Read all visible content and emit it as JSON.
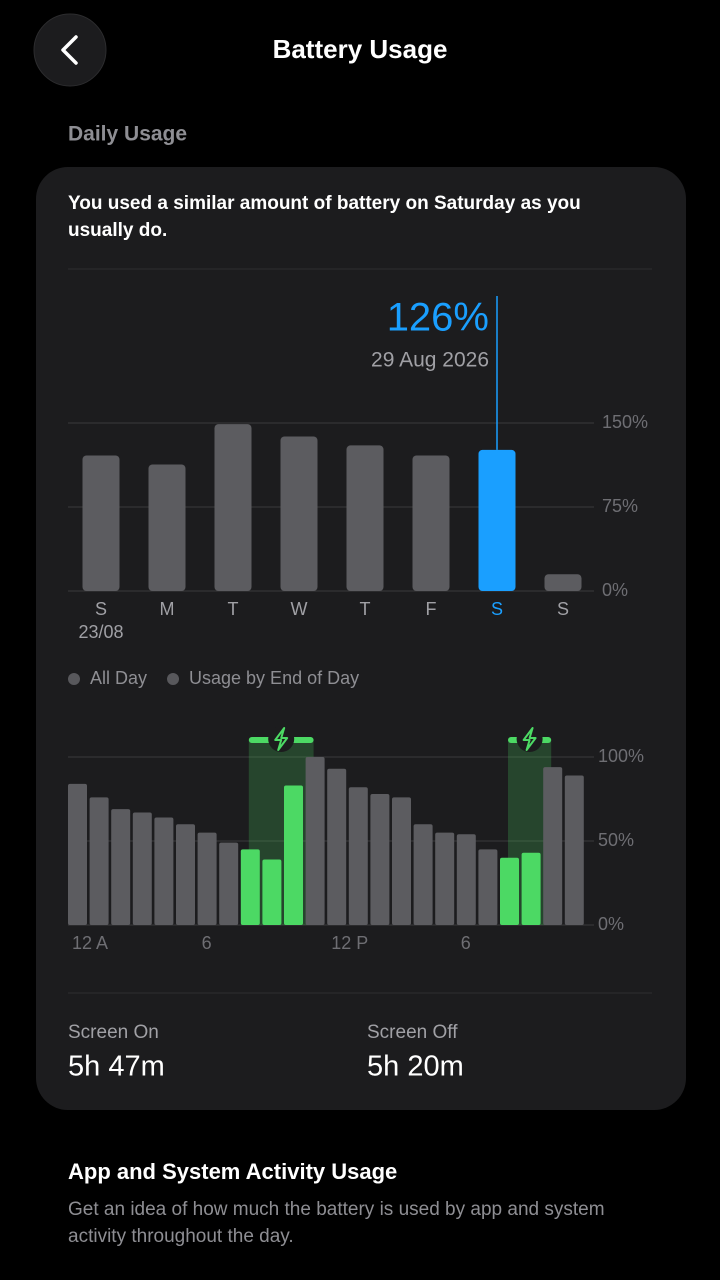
{
  "header": {
    "title": "Battery Usage"
  },
  "section_title": "Daily Usage",
  "summary": "You used a similar amount of battery on Saturday as you usually do.",
  "chart_data": [
    {
      "type": "bar",
      "categories": [
        "S",
        "M",
        "T",
        "W",
        "T",
        "F",
        "S",
        "S"
      ],
      "category_sublabels": [
        "23/08",
        null,
        null,
        null,
        null,
        null,
        null,
        null
      ],
      "values": [
        121,
        113,
        149,
        138,
        130,
        121,
        126,
        15
      ],
      "value_labels": [
        null,
        null,
        null,
        null,
        null,
        null,
        "126%",
        null
      ],
      "annotation": "29 Aug 2026",
      "colors": [
        "#5c5c60",
        "#5c5c60",
        "#5c5c60",
        "#5c5c60",
        "#5c5c60",
        "#5c5c60",
        "#1a9fff",
        "#5c5c60"
      ],
      "ylim": [
        0,
        150
      ],
      "yticks": [
        {
          "value": 0,
          "label": "0%"
        },
        {
          "value": 75,
          "label": "75%"
        },
        {
          "value": 150,
          "label": "150%"
        }
      ],
      "grid": true
    },
    {
      "type": "bar",
      "legend": [
        {
          "name": "All Day",
          "color": "#58585c"
        },
        {
          "name": "Usage by End of Day",
          "color": "#58585c"
        }
      ],
      "categories": [
        "12 A",
        null,
        null,
        null,
        null,
        null,
        "6",
        null,
        null,
        null,
        null,
        null,
        "12 P",
        null,
        null,
        null,
        null,
        null,
        "6",
        null,
        null,
        null,
        null,
        null
      ],
      "values": [
        84,
        76,
        69,
        67,
        64,
        60,
        55,
        49,
        45,
        39,
        83,
        100,
        93,
        82,
        78,
        76,
        60,
        55,
        54,
        45,
        40,
        43,
        94,
        89
      ],
      "colors": [
        "#5c5c60",
        "#5c5c60",
        "#5c5c60",
        "#5c5c60",
        "#5c5c60",
        "#5c5c60",
        "#5c5c60",
        "#5c5c60",
        "#4cd964",
        "#4cd964",
        "#4cd964",
        "#5c5c60",
        "#5c5c60",
        "#5c5c60",
        "#5c5c60",
        "#5c5c60",
        "#5c5c60",
        "#5c5c60",
        "#5c5c60",
        "#5c5c60",
        "#4cd964",
        "#4cd964",
        "#5c5c60",
        "#5c5c60"
      ],
      "ylim": [
        0,
        100
      ],
      "yticks": [
        {
          "value": 0,
          "label": "0%"
        },
        {
          "value": 50,
          "label": "50%"
        },
        {
          "value": 100,
          "label": "100%"
        }
      ],
      "grid": true
    }
  ],
  "screen_on": {
    "label": "Screen On",
    "value": "5h 47m"
  },
  "screen_off": {
    "label": "Screen Off",
    "value": "5h 20m"
  },
  "activity": {
    "title": "App and System Activity Usage",
    "description": "Get an idea of how much the battery is used by app and system activity throughout the day."
  }
}
